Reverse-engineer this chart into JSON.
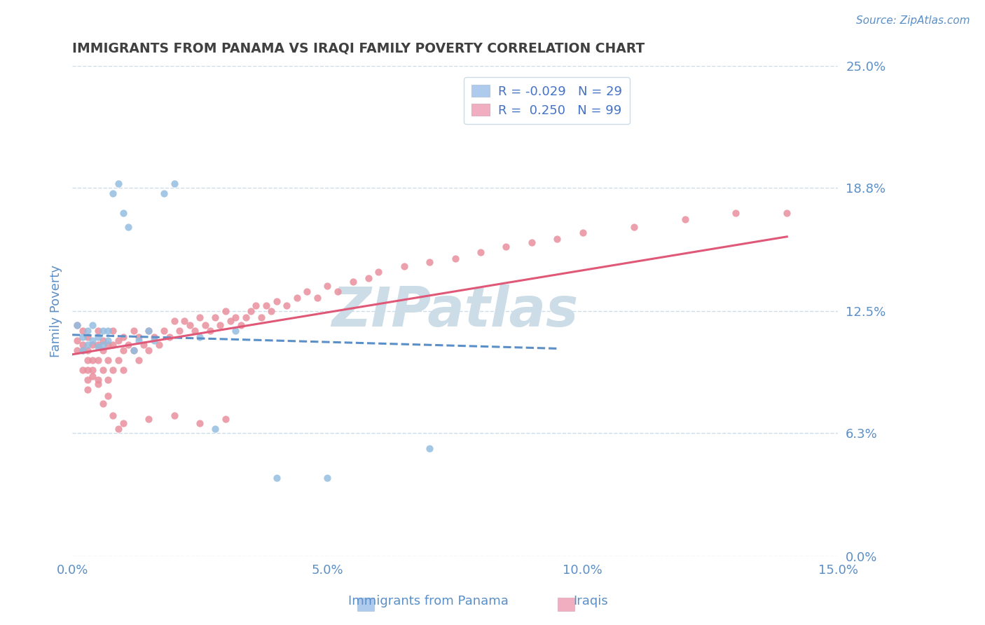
{
  "title": "IMMIGRANTS FROM PANAMA VS IRAQI FAMILY POVERTY CORRELATION CHART",
  "source": "Source: ZipAtlas.com",
  "ylabel": "Family Poverty",
  "xlim": [
    0.0,
    0.15
  ],
  "ylim": [
    0.0,
    0.25
  ],
  "xticks": [
    0.0,
    0.05,
    0.1,
    0.15
  ],
  "xtick_labels": [
    "0.0%",
    "5.0%",
    "10.0%",
    "15.0%"
  ],
  "yticks_right": [
    0.0,
    0.063,
    0.125,
    0.188,
    0.25
  ],
  "ytick_right_labels": [
    "0.0%",
    "6.3%",
    "12.5%",
    "18.8%",
    "25.0%"
  ],
  "watermark": "ZIPatlas",
  "panama_x": [
    0.001,
    0.002,
    0.002,
    0.003,
    0.003,
    0.004,
    0.004,
    0.005,
    0.005,
    0.006,
    0.006,
    0.007,
    0.007,
    0.008,
    0.009,
    0.01,
    0.011,
    0.012,
    0.013,
    0.015,
    0.016,
    0.018,
    0.02,
    0.025,
    0.028,
    0.032,
    0.04,
    0.05,
    0.07
  ],
  "panama_y": [
    0.118,
    0.112,
    0.105,
    0.115,
    0.108,
    0.11,
    0.118,
    0.112,
    0.107,
    0.115,
    0.108,
    0.11,
    0.115,
    0.185,
    0.19,
    0.175,
    0.168,
    0.105,
    0.11,
    0.115,
    0.11,
    0.185,
    0.19,
    0.112,
    0.065,
    0.115,
    0.04,
    0.04,
    0.055
  ],
  "iraq_x": [
    0.001,
    0.001,
    0.001,
    0.002,
    0.002,
    0.002,
    0.002,
    0.003,
    0.003,
    0.003,
    0.003,
    0.003,
    0.004,
    0.004,
    0.004,
    0.005,
    0.005,
    0.005,
    0.005,
    0.006,
    0.006,
    0.006,
    0.007,
    0.007,
    0.007,
    0.008,
    0.008,
    0.008,
    0.009,
    0.009,
    0.01,
    0.01,
    0.01,
    0.011,
    0.012,
    0.012,
    0.013,
    0.013,
    0.014,
    0.015,
    0.015,
    0.016,
    0.017,
    0.018,
    0.019,
    0.02,
    0.021,
    0.022,
    0.023,
    0.024,
    0.025,
    0.026,
    0.027,
    0.028,
    0.029,
    0.03,
    0.031,
    0.032,
    0.033,
    0.034,
    0.035,
    0.036,
    0.037,
    0.038,
    0.039,
    0.04,
    0.042,
    0.044,
    0.046,
    0.048,
    0.05,
    0.052,
    0.055,
    0.058,
    0.06,
    0.065,
    0.07,
    0.075,
    0.08,
    0.085,
    0.09,
    0.095,
    0.1,
    0.11,
    0.12,
    0.13,
    0.14,
    0.003,
    0.004,
    0.005,
    0.006,
    0.007,
    0.008,
    0.009,
    0.01,
    0.015,
    0.02,
    0.025,
    0.03
  ],
  "iraq_y": [
    0.118,
    0.11,
    0.105,
    0.115,
    0.108,
    0.095,
    0.105,
    0.112,
    0.1,
    0.095,
    0.09,
    0.105,
    0.1,
    0.108,
    0.095,
    0.115,
    0.108,
    0.1,
    0.09,
    0.11,
    0.105,
    0.095,
    0.108,
    0.1,
    0.09,
    0.115,
    0.108,
    0.095,
    0.11,
    0.1,
    0.112,
    0.105,
    0.095,
    0.108,
    0.115,
    0.105,
    0.112,
    0.1,
    0.108,
    0.115,
    0.105,
    0.112,
    0.108,
    0.115,
    0.112,
    0.12,
    0.115,
    0.12,
    0.118,
    0.115,
    0.122,
    0.118,
    0.115,
    0.122,
    0.118,
    0.125,
    0.12,
    0.122,
    0.118,
    0.122,
    0.125,
    0.128,
    0.122,
    0.128,
    0.125,
    0.13,
    0.128,
    0.132,
    0.135,
    0.132,
    0.138,
    0.135,
    0.14,
    0.142,
    0.145,
    0.148,
    0.15,
    0.152,
    0.155,
    0.158,
    0.16,
    0.162,
    0.165,
    0.168,
    0.172,
    0.175,
    0.175,
    0.085,
    0.092,
    0.088,
    0.078,
    0.082,
    0.072,
    0.065,
    0.068,
    0.07,
    0.072,
    0.068,
    0.07
  ],
  "panama_trend_x": [
    0.0,
    0.095
  ],
  "panama_trend_y": [
    0.113,
    0.106
  ],
  "iraq_trend_x": [
    0.0,
    0.14
  ],
  "iraq_trend_y": [
    0.103,
    0.163
  ],
  "blue_dot_color": "#93bde0",
  "pink_dot_color": "#e8909e",
  "blue_line_color": "#5b8fc7",
  "pink_line_color": "#e05878",
  "grid_color": "#ccdce8",
  "background_color": "#ffffff",
  "title_color": "#404040",
  "axis_color": "#5b8fc7",
  "watermark_color": "#ccdde8",
  "legend_box_blue": "#aecbee",
  "legend_box_pink": "#f0aec0",
  "legend_r_color": "#4472c4",
  "legend_text_color": "#404040"
}
